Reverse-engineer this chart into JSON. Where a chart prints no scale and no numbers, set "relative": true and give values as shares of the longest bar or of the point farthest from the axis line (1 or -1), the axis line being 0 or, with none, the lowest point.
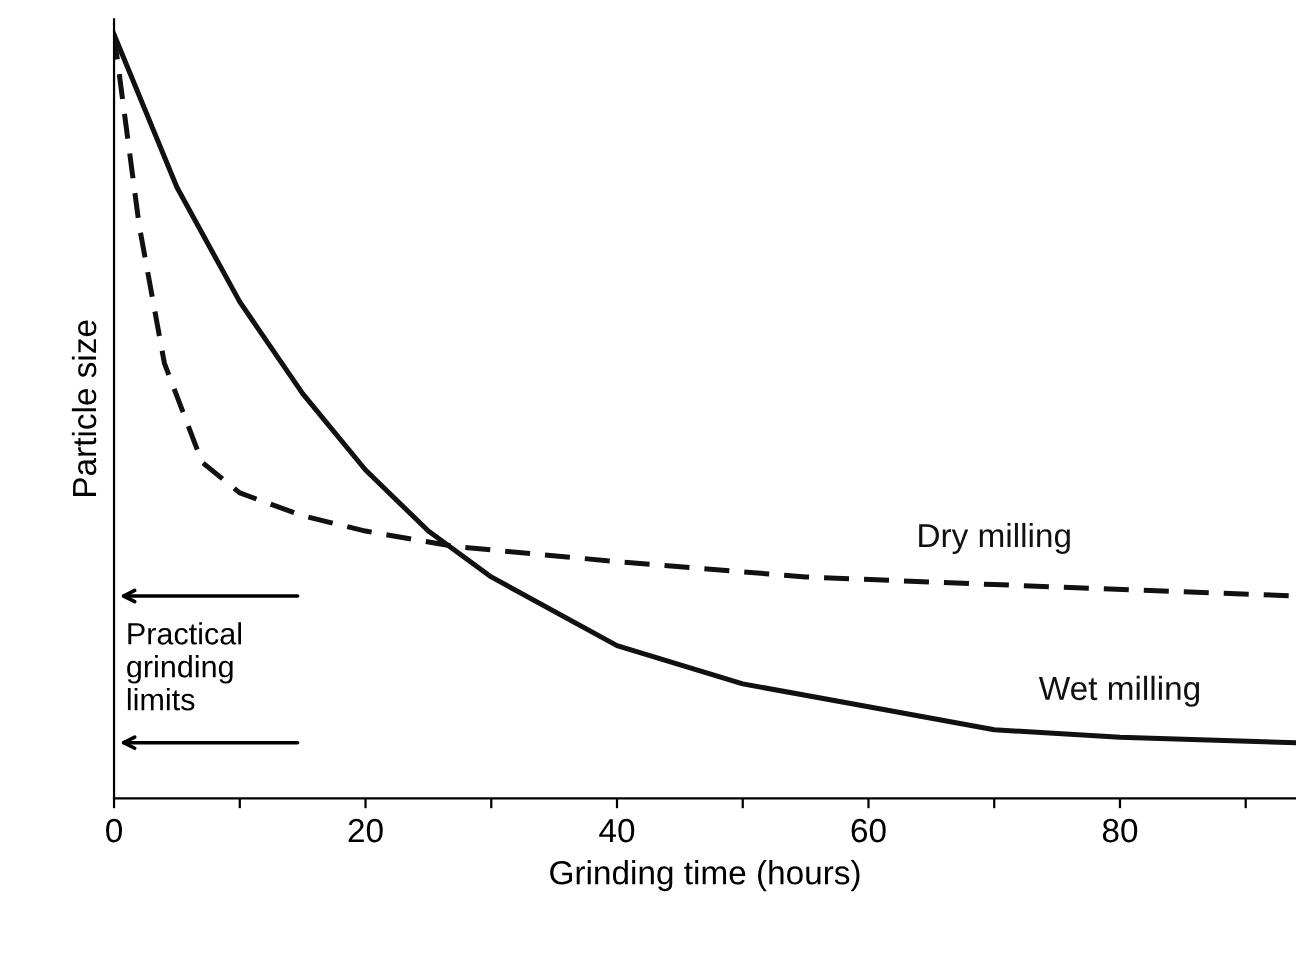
{
  "chart_data": {
    "type": "line",
    "relative": true,
    "xlabel": "Grinding time (hours)",
    "ylabel": "Particle size",
    "xlim": [
      0,
      94
    ],
    "xticks": [
      0,
      {
        "value": 10,
        "label": null
      },
      20,
      {
        "value": 30,
        "label": null
      },
      40,
      {
        "value": 50,
        "label": null
      },
      60,
      {
        "value": 70,
        "label": null
      },
      80,
      {
        "value": 90,
        "label": null
      }
    ],
    "series": [
      {
        "name": "Dry milling",
        "color": "#111111",
        "line_style": "dashed",
        "x": [
          0,
          2,
          4,
          7,
          10,
          15,
          20,
          27,
          40,
          55,
          70,
          94
        ],
        "values": [
          1,
          0.75,
          0.57,
          0.44,
          0.4,
          0.37,
          0.35,
          0.33,
          0.31,
          0.29,
          0.28,
          0.265
        ]
      },
      {
        "name": "Wet milling",
        "color": "#111111",
        "line_style": "solid",
        "x": [
          0,
          5,
          10,
          15,
          20,
          25,
          30,
          40,
          50,
          60,
          70,
          80,
          94
        ],
        "values": [
          1,
          0.8,
          0.65,
          0.53,
          0.43,
          0.35,
          0.29,
          0.2,
          0.15,
          0.12,
          0.09,
          0.08,
          0.073
        ]
      }
    ],
    "annotations": [
      "Practical\ngrinding\nlimits"
    ],
    "grid": false,
    "legend": false,
    "marker": "none"
  }
}
